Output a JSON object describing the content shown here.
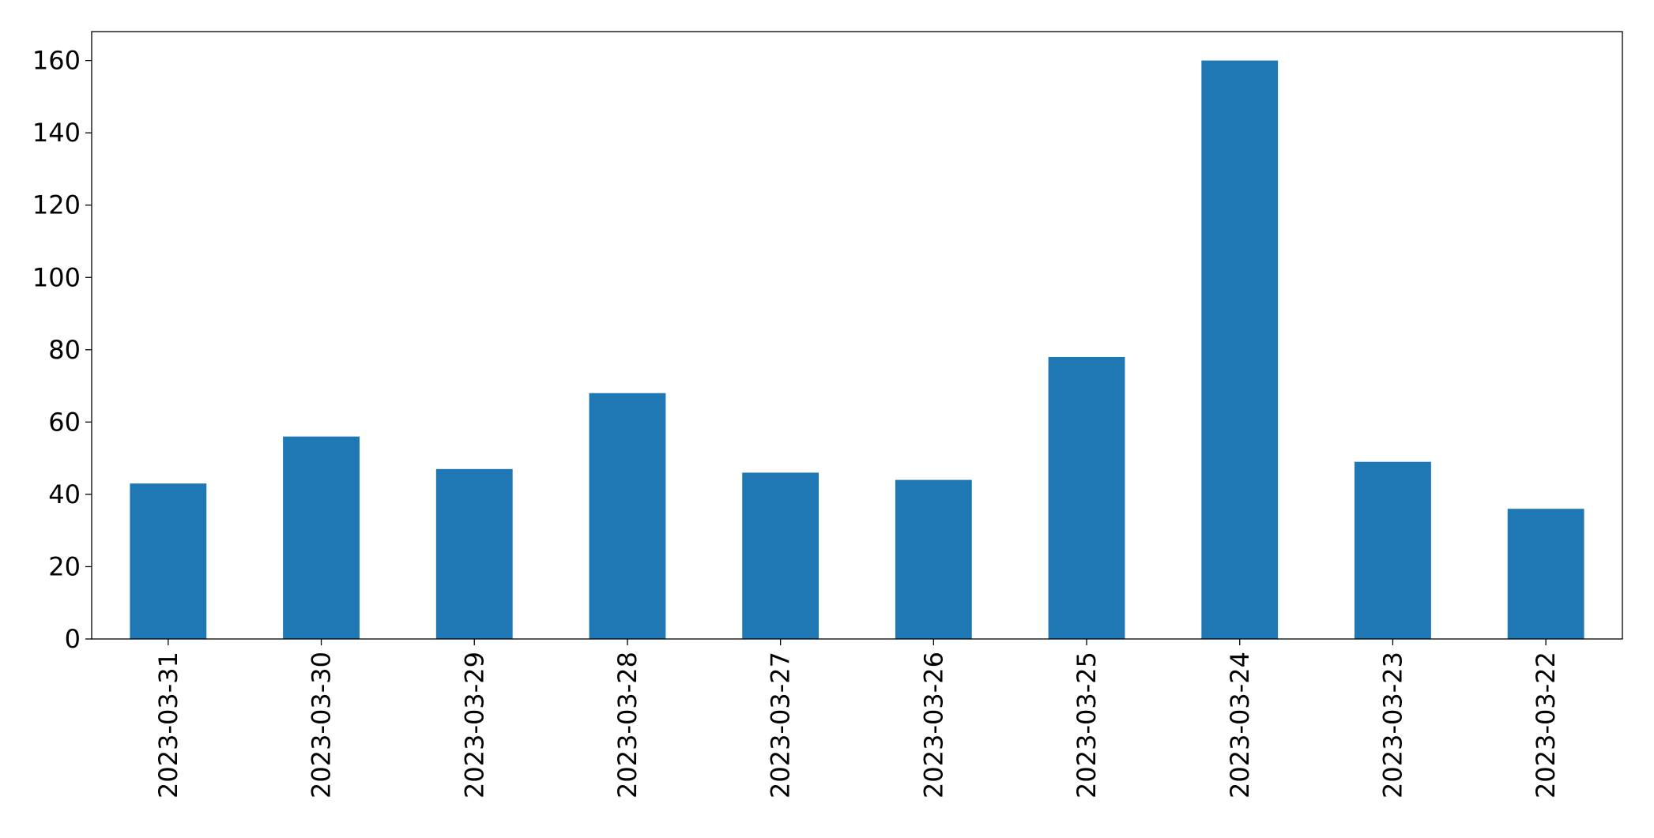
{
  "chart_data": {
    "type": "bar",
    "categories": [
      "2023-03-31",
      "2023-03-30",
      "2023-03-29",
      "2023-03-28",
      "2023-03-27",
      "2023-03-26",
      "2023-03-25",
      "2023-03-24",
      "2023-03-23",
      "2023-03-22"
    ],
    "values": [
      43,
      56,
      47,
      68,
      46,
      44,
      78,
      160,
      49,
      36
    ],
    "color": "#1f77b4",
    "ylim": [
      0,
      168
    ],
    "yticks": [
      0,
      20,
      40,
      60,
      80,
      100,
      120,
      140,
      160
    ],
    "grid": false
  }
}
